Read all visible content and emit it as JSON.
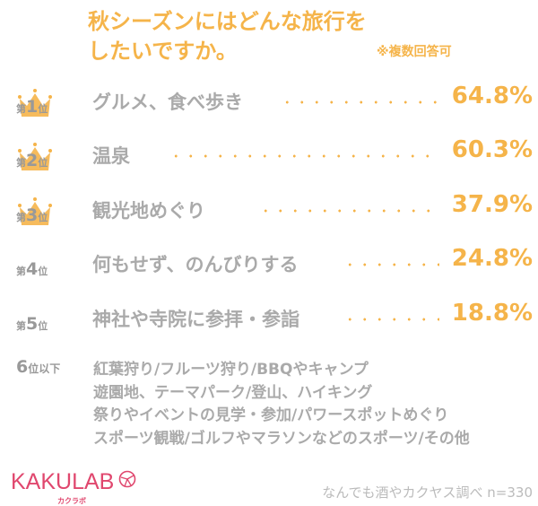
{
  "header": {
    "title_line1": "秋シーズンにはどんな旅行を",
    "title_line2": "したいですか。",
    "note": "※複数回答可"
  },
  "colors": {
    "accent": "#f5b44a",
    "text_gray": "#aaaaaa",
    "brand": "#e0476e"
  },
  "chart_data": {
    "type": "table",
    "rank_prefix": "第",
    "rank_suffix": "位",
    "rows": [
      {
        "rank": "1",
        "label": "グルメ、食べ歩き",
        "value": "64.8%",
        "crown": true
      },
      {
        "rank": "2",
        "label": "温泉",
        "value": "60.3%",
        "crown": true
      },
      {
        "rank": "3",
        "label": "観光地めぐり",
        "value": "37.9%",
        "crown": true
      },
      {
        "rank": "4",
        "label": "何もせず、のんびりする",
        "value": "24.8%",
        "crown": false
      },
      {
        "rank": "5",
        "label": "神社や寺院に参拝・参詣",
        "value": "18.8%",
        "crown": false
      }
    ],
    "others": {
      "rank": "6",
      "suffix": "位以下",
      "lines": [
        "紅葉狩り/フルーツ狩り/BBQやキャンプ",
        "遊園地、テーマパーク/登山、ハイキング",
        "祭りやイベントの見学・参加/パワースポットめぐり",
        "スポーツ観戦/ゴルフやマラソンなどのスポーツ/その他"
      ]
    }
  },
  "footer": {
    "logo": "KAKULAB",
    "logo_kana": "カクラボ",
    "source": "なんでも酒やカクヤス調べ n=330"
  }
}
